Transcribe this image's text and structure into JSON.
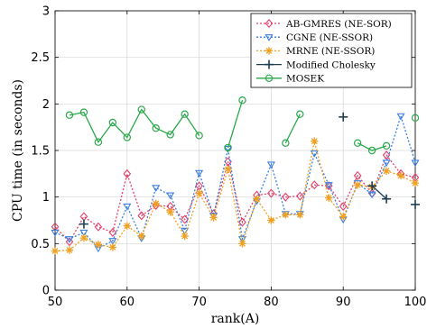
{
  "chart_data": {
    "type": "line",
    "title": "",
    "xlabel": "rank(A)",
    "ylabel": "CPU time (in seconds)",
    "xlim": [
      50,
      100
    ],
    "ylim": [
      0,
      3
    ],
    "x_ticks": [
      "50",
      "60",
      "70",
      "80",
      "90",
      "100"
    ],
    "y_ticks": [
      "0",
      "0.5",
      "1",
      "1.5",
      "2",
      "2.5",
      "3"
    ],
    "x_tick_values": [
      50,
      60,
      70,
      80,
      90,
      100
    ],
    "y_tick_values": [
      0,
      0.5,
      1,
      1.5,
      2,
      2.5,
      3
    ],
    "grid": true,
    "legend_position": "top-right",
    "x": [
      50,
      52,
      54,
      56,
      58,
      60,
      62,
      64,
      66,
      68,
      70,
      72,
      74,
      76,
      78,
      80,
      82,
      84,
      86,
      88,
      90,
      92,
      94,
      96,
      98,
      100
    ],
    "series": [
      {
        "name": "AB-GMRES (NE-SOR)",
        "color": "#e0406a",
        "marker": "diamond",
        "dash": "2,2",
        "values": [
          0.68,
          0.52,
          0.79,
          0.68,
          0.62,
          1.25,
          0.8,
          0.91,
          0.9,
          0.76,
          1.12,
          0.82,
          1.38,
          0.73,
          1.02,
          1.04,
          1.0,
          1.01,
          1.13,
          1.12,
          0.9,
          1.23,
          1.04,
          1.45,
          1.25,
          1.21
        ]
      },
      {
        "name": "CGNE (NE-SSOR)",
        "color": "#3a7ee0",
        "marker": "triangle-down",
        "dash": "2,2",
        "values": [
          0.62,
          0.55,
          0.62,
          0.45,
          0.53,
          0.9,
          0.56,
          1.1,
          1.02,
          0.64,
          1.26,
          0.8,
          1.52,
          0.55,
          0.96,
          1.35,
          0.82,
          0.82,
          1.47,
          1.13,
          0.76,
          1.15,
          1.03,
          1.37,
          1.87,
          1.37
        ]
      },
      {
        "name": "MRNE (NE-SSOR)",
        "color": "#f0a020",
        "marker": "asterisk",
        "dash": "2,2",
        "values": [
          0.42,
          0.43,
          0.56,
          0.49,
          0.46,
          0.69,
          0.58,
          0.93,
          0.84,
          0.58,
          1.04,
          0.78,
          1.3,
          0.5,
          0.98,
          0.75,
          0.81,
          0.81,
          1.6,
          0.99,
          0.79,
          1.13,
          1.11,
          1.28,
          1.23,
          1.15
        ]
      },
      {
        "name": "Modified Cholesky",
        "color": "#1f3f52",
        "marker": "plus",
        "dash": "",
        "values": [
          null,
          null,
          0.71,
          null,
          null,
          null,
          null,
          null,
          null,
          null,
          null,
          null,
          null,
          null,
          null,
          null,
          null,
          null,
          null,
          null,
          1.86,
          null,
          1.12,
          0.98,
          null,
          0.92
        ]
      },
      {
        "name": "MOSEK",
        "color": "#2aa84a",
        "marker": "circle",
        "dash": "",
        "values": [
          null,
          1.88,
          1.91,
          1.59,
          1.8,
          1.64,
          1.94,
          1.74,
          1.67,
          1.89,
          1.66,
          null,
          1.53,
          2.04,
          null,
          null,
          1.58,
          1.89,
          null,
          null,
          null,
          1.58,
          1.5,
          1.55,
          null,
          1.85
        ]
      }
    ]
  }
}
